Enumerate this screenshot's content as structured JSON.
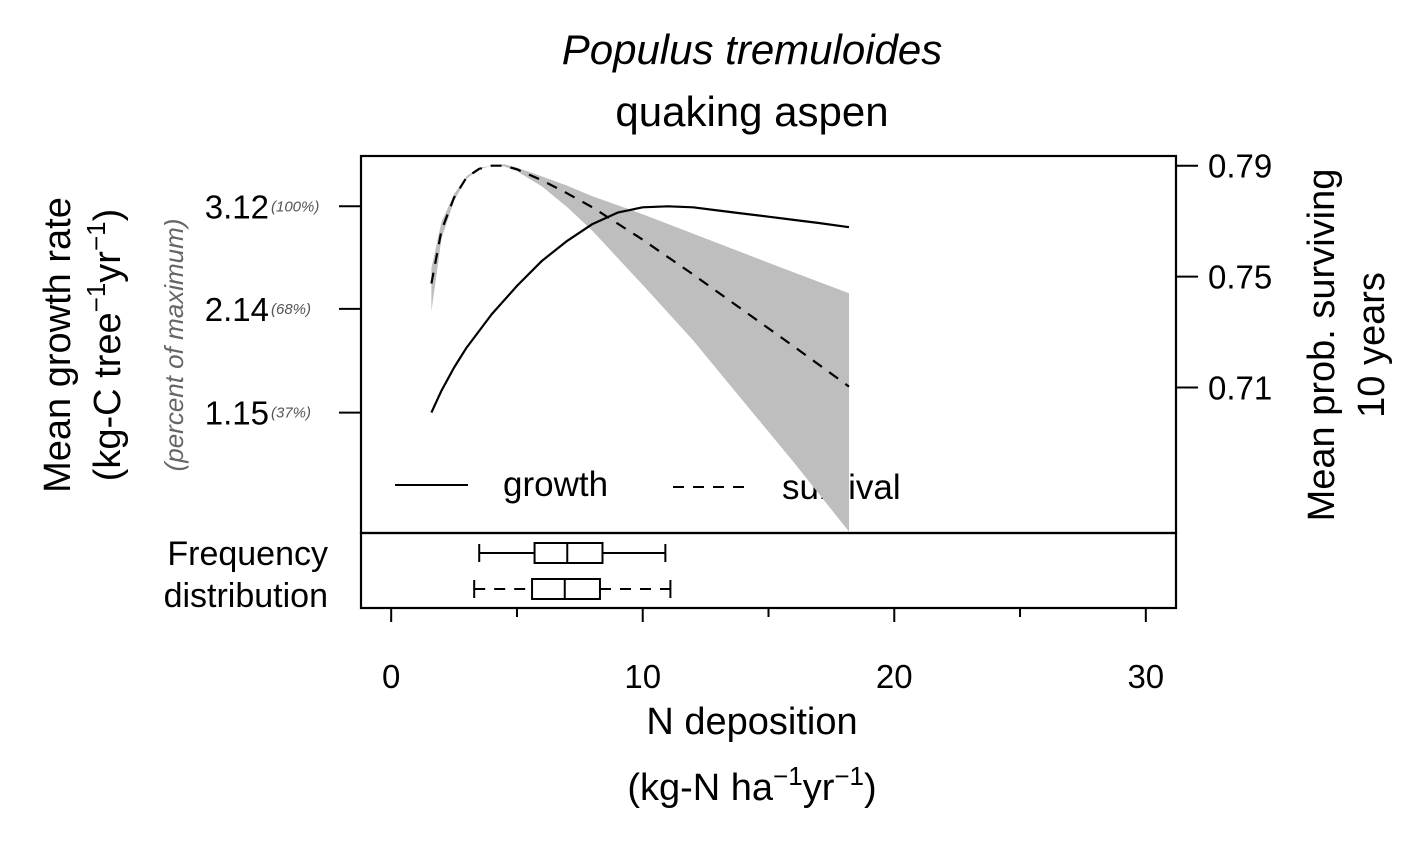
{
  "chart_data": {
    "type": "line",
    "title": "Populus tremuloides",
    "subtitle": "quaking aspen",
    "xlabel": {
      "line1": "N deposition",
      "line2_prefix": "(kg-N ha",
      "line2_mid": "yr",
      "line2_suffix": ")",
      "exp": "−1"
    },
    "ylabel_left": {
      "line1": "Mean growth rate",
      "line2_prefix": "(kg-C tree",
      "line2_mid": "yr",
      "line2_suffix": ")",
      "exp": "−1"
    },
    "ylabel_left_note": "(percent of maximum)",
    "ylabel_right": {
      "line1": "Mean prob. surviving",
      "line2": "10 years"
    },
    "xlim": [
      -1.2,
      31.2
    ],
    "x_ticks": [
      0,
      10,
      20,
      30
    ],
    "x_tick_labels": [
      "0",
      "10",
      "20",
      "30"
    ],
    "x_minor_ticks": [
      5,
      15,
      25
    ],
    "left_ylim": [
      0.0,
      3.6
    ],
    "left_ticks": [
      {
        "value": 1.15,
        "label": "1.15",
        "pct": "(37%)"
      },
      {
        "value": 2.14,
        "label": "2.14",
        "pct": "(68%)"
      },
      {
        "value": 3.12,
        "label": "3.12",
        "pct": "(100%)"
      }
    ],
    "right_ylim": [
      0.6575,
      0.7935
    ],
    "right_ticks": [
      {
        "value": 0.71,
        "label": "0.71"
      },
      {
        "value": 0.75,
        "label": "0.75"
      },
      {
        "value": 0.79,
        "label": "0.79"
      }
    ],
    "series": [
      {
        "name": "growth",
        "axis": "left",
        "style": "solid",
        "x": [
          1.6,
          2,
          2.5,
          3,
          4,
          5,
          6,
          7,
          8,
          9,
          10,
          11,
          12,
          13,
          14,
          15,
          16,
          17,
          18.2
        ],
        "y": [
          1.15,
          1.36,
          1.58,
          1.77,
          2.09,
          2.36,
          2.6,
          2.79,
          2.95,
          3.06,
          3.11,
          3.12,
          3.11,
          3.08,
          3.05,
          3.02,
          2.99,
          2.96,
          2.92
        ]
      },
      {
        "name": "survival",
        "axis": "right",
        "style": "dashed",
        "x": [
          1.6,
          2,
          2.5,
          3,
          3.5,
          4,
          4.5,
          5,
          6,
          7,
          8,
          10,
          12,
          14,
          16,
          18.2
        ],
        "y": [
          0.7475,
          0.7667,
          0.7785,
          0.7858,
          0.7889,
          0.79,
          0.79,
          0.7887,
          0.7847,
          0.78,
          0.775,
          0.7633,
          0.7508,
          0.7378,
          0.7248,
          0.7103
        ],
        "ci_lower": [
          0.7375,
          0.7637,
          0.7774,
          0.7853,
          0.7887,
          0.79,
          0.7897,
          0.788,
          0.7825,
          0.775,
          0.7665,
          0.747,
          0.727,
          0.705,
          0.683,
          0.658
        ],
        "ci_upper": [
          0.753,
          0.7697,
          0.7798,
          0.7863,
          0.7892,
          0.79,
          0.7905,
          0.7893,
          0.7861,
          0.7828,
          0.779,
          0.7725,
          0.7655,
          0.7585,
          0.7515,
          0.744
        ]
      }
    ],
    "legend": {
      "position": "bottom",
      "entries": [
        {
          "label": "growth",
          "style": "solid"
        },
        {
          "label": "survival",
          "style": "dashed"
        }
      ]
    },
    "distribution": {
      "label_line1": "Frequency",
      "label_line2": "distribution",
      "boxes": [
        {
          "style": "solid",
          "whisker_low": 3.5,
          "q1": 5.7,
          "median": 7.0,
          "q3": 8.4,
          "whisker_high": 10.9
        },
        {
          "style": "dashed",
          "whisker_low": 3.3,
          "q1": 5.6,
          "median": 6.9,
          "q3": 8.3,
          "whisker_high": 11.1
        }
      ]
    }
  }
}
